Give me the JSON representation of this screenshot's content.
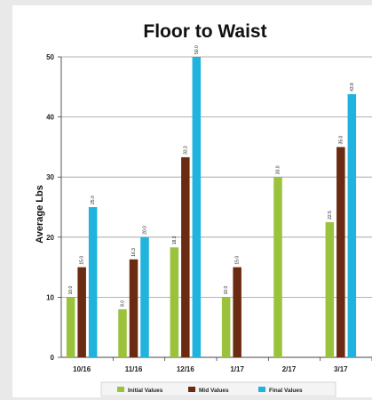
{
  "chart_data": {
    "type": "bar",
    "title": "Floor to Waist",
    "xlabel": "",
    "ylabel": "Average Lbs",
    "ylim": [
      0,
      50
    ],
    "yticks": [
      0,
      10,
      20,
      30,
      40,
      50
    ],
    "grid": true,
    "legend_position": "bottom",
    "categories": [
      "10/16",
      "11/16",
      "12/16",
      "1/17",
      "2/17",
      "3/17"
    ],
    "series": [
      {
        "name": "Initial Values",
        "color": "#9bc23c",
        "values": [
          10.0,
          8.0,
          18.3,
          10.0,
          30.0,
          22.5
        ],
        "labels": [
          "10.0",
          "8.0",
          "18.3",
          "10.0",
          "30.0",
          "22.5"
        ]
      },
      {
        "name": "Mid Values",
        "color": "#6b2a12",
        "values": [
          15.0,
          16.3,
          33.3,
          15.0,
          null,
          35.0
        ],
        "labels": [
          "15.0",
          "16.3",
          "33.3",
          "15.0",
          "",
          "35.0"
        ]
      },
      {
        "name": "Final Values",
        "color": "#1fb3de",
        "values": [
          25.0,
          20.0,
          50.0,
          null,
          null,
          43.8
        ],
        "labels": [
          "25.0",
          "20.0",
          "50.0",
          "",
          "",
          "43.8"
        ]
      }
    ]
  }
}
